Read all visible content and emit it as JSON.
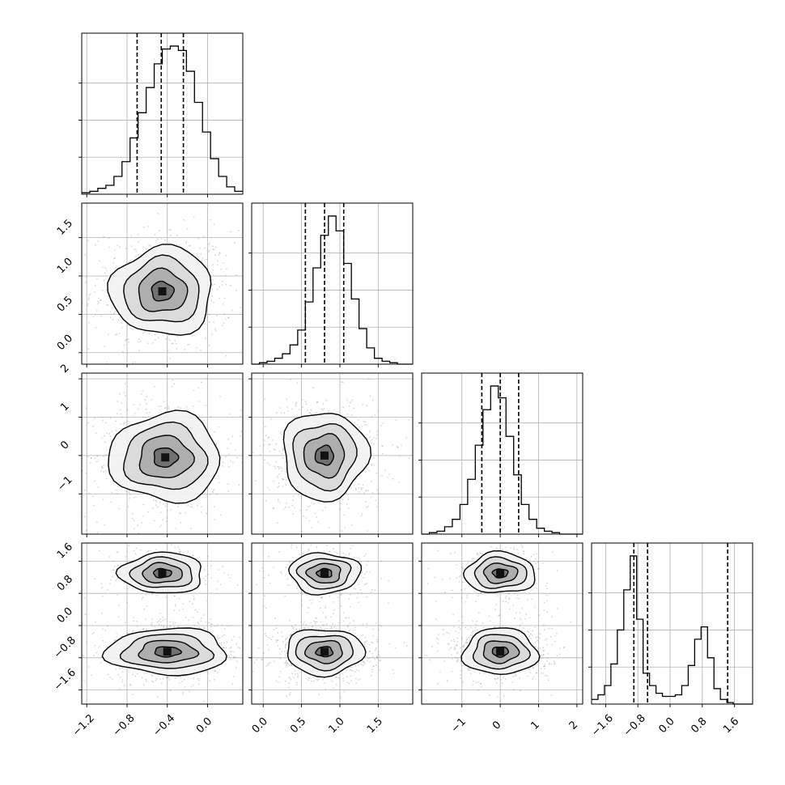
{
  "chart_data": {
    "type": "corner",
    "description_free": true,
    "quantiles_dashed": true,
    "grid": true,
    "variables": [
      {
        "range": [
          -1.25,
          0.35
        ],
        "ticks": [
          -1.2,
          -0.8,
          -0.4,
          0.0
        ],
        "tick_labels": [
          "−1.2",
          "−0.8",
          "−0.4",
          "0.0"
        ],
        "quantiles": [
          -0.7,
          -0.46,
          -0.24
        ],
        "hist_edges_start": -1.25,
        "hist_bin_width": 0.08,
        "hist_values": [
          0.01,
          0.02,
          0.04,
          0.06,
          0.12,
          0.22,
          0.38,
          0.55,
          0.72,
          0.88,
          0.98,
          1.0,
          0.97,
          0.83,
          0.62,
          0.42,
          0.24,
          0.12,
          0.05,
          0.02
        ]
      },
      {
        "range": [
          -0.15,
          1.95
        ],
        "ticks": [
          0.0,
          0.5,
          1.0,
          1.5
        ],
        "tick_labels": [
          "0.0",
          "0.5",
          "1.0",
          "1.5"
        ],
        "quantiles": [
          0.55,
          0.8,
          1.05
        ],
        "hist_edges_start": -0.15,
        "hist_bin_width": 0.1,
        "hist_values": [
          0.0,
          0.01,
          0.02,
          0.04,
          0.07,
          0.13,
          0.23,
          0.42,
          0.65,
          0.87,
          1.0,
          0.9,
          0.68,
          0.44,
          0.24,
          0.11,
          0.04,
          0.02,
          0.01,
          0.0,
          0.0
        ]
      },
      {
        "range": [
          -2.05,
          2.15
        ],
        "ticks": [
          -1,
          0,
          1,
          2
        ],
        "tick_labels": [
          "−1",
          "0",
          "1",
          "2"
        ],
        "quantiles": [
          -0.48,
          0.0,
          0.48
        ],
        "hist_edges_start": -2.05,
        "hist_bin_width": 0.2,
        "hist_values": [
          0.0,
          0.01,
          0.02,
          0.05,
          0.1,
          0.2,
          0.37,
          0.6,
          0.84,
          1.0,
          0.92,
          0.66,
          0.4,
          0.2,
          0.1,
          0.04,
          0.02,
          0.01,
          0.0,
          0.0,
          0.0
        ]
      },
      {
        "range": [
          -1.95,
          2.05
        ],
        "ticks": [
          -1.6,
          -0.8,
          0.0,
          0.8,
          1.6
        ],
        "tick_labels": [
          "−1.6",
          "−0.8",
          "0.0",
          "0.8",
          "1.6"
        ],
        "quantiles": [
          -0.9,
          -0.56,
          1.43
        ],
        "hist_edges_start": -1.95,
        "hist_bin_width": 0.16,
        "hist_values": [
          0.03,
          0.06,
          0.12,
          0.26,
          0.48,
          0.74,
          0.96,
          0.55,
          0.2,
          0.12,
          0.07,
          0.05,
          0.05,
          0.06,
          0.12,
          0.25,
          0.42,
          0.5,
          0.3,
          0.1,
          0.03,
          0.01,
          0.0,
          0.0,
          0.0
        ]
      }
    ],
    "pairs": [
      {
        "row": 1,
        "col": 0,
        "modes": [
          {
            "cx": -0.45,
            "cy": 0.8,
            "sx": 0.22,
            "sy": 0.25,
            "w": 1.0
          }
        ]
      },
      {
        "row": 2,
        "col": 0,
        "modes": [
          {
            "cx": -0.42,
            "cy": -0.05,
            "sx": 0.24,
            "sy": 0.5,
            "w": 1.0
          }
        ]
      },
      {
        "row": 2,
        "col": 1,
        "modes": [
          {
            "cx": 0.8,
            "cy": 0.0,
            "sx": 0.24,
            "sy": 0.5,
            "w": 1.0
          }
        ]
      },
      {
        "row": 3,
        "col": 0,
        "modes": [
          {
            "cx": -0.45,
            "cy": 1.3,
            "sx": 0.18,
            "sy": 0.22,
            "w": 0.45
          },
          {
            "cx": -0.4,
            "cy": -0.65,
            "sx": 0.26,
            "sy": 0.25,
            "w": 1.0
          }
        ]
      },
      {
        "row": 3,
        "col": 1,
        "modes": [
          {
            "cx": 0.8,
            "cy": 1.3,
            "sx": 0.2,
            "sy": 0.22,
            "w": 0.45
          },
          {
            "cx": 0.8,
            "cy": -0.65,
            "sx": 0.22,
            "sy": 0.25,
            "w": 1.0
          }
        ]
      },
      {
        "row": 3,
        "col": 2,
        "modes": [
          {
            "cx": 0.0,
            "cy": 1.3,
            "sx": 0.4,
            "sy": 0.22,
            "w": 0.45
          },
          {
            "cx": 0.0,
            "cy": -0.65,
            "sx": 0.42,
            "sy": 0.25,
            "w": 1.0
          }
        ]
      }
    ],
    "colors": {
      "ink": "#000000",
      "grid": "#b0b0b0",
      "scatter": "#888888"
    }
  }
}
